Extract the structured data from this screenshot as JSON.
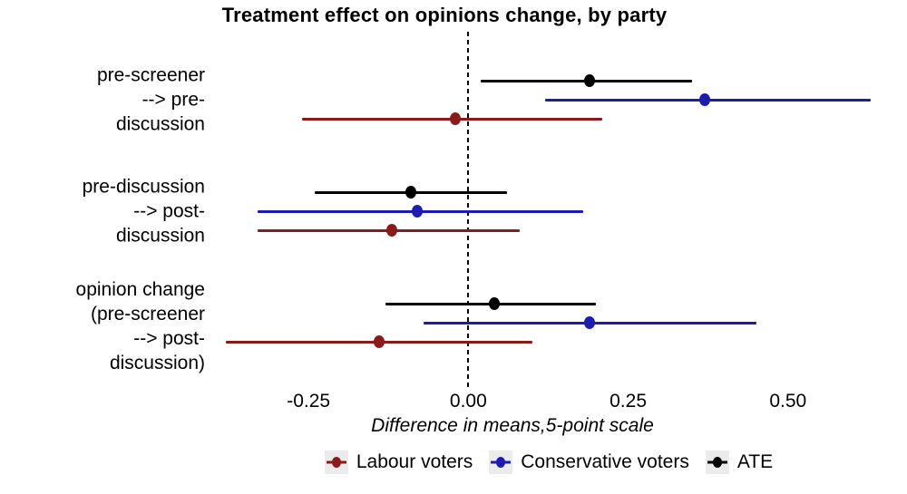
{
  "title": "Treatment effect on opinions change, by party",
  "chart_data": {
    "type": "scatter",
    "subtype": "horizontal dot-whisker (forest) plot with confidence intervals",
    "title": "Treatment effect on opinions change, by party",
    "xlabel": "Difference in means,5-point scale",
    "xlim": [
      -0.385,
      0.672
    ],
    "zero_line": 0,
    "xticks": [
      -0.25,
      0,
      0.25,
      0.5
    ],
    "xtick_labels": [
      "-0.25",
      "0.00",
      "0.25",
      "0.50"
    ],
    "grid": "off",
    "legend_position": "bottom",
    "legend_order": [
      "Labour voters",
      "Conservative voters",
      "ATE"
    ],
    "key_background": "#EBEBEB",
    "categories": [
      {
        "id": "pre-screener --> pre-discussion",
        "lines": [
          "pre-screener",
          "--> pre-",
          "discussion"
        ]
      },
      {
        "id": "pre-discussion --> post-discussion",
        "lines": [
          "pre-discussion",
          "--> post-",
          "discussion"
        ]
      },
      {
        "id": "opinion change (pre-screener --> post-discussion)",
        "lines": [
          "opinion change",
          "(pre-screener",
          "--> post-",
          "discussion)"
        ]
      }
    ],
    "series": [
      {
        "name": "ATE",
        "color": "#000000",
        "points": [
          {
            "category": "pre-screener --> pre-discussion",
            "est": 0.19,
            "lo": 0.02,
            "hi": 0.35
          },
          {
            "category": "pre-discussion --> post-discussion",
            "est": -0.09,
            "lo": -0.24,
            "hi": 0.06
          },
          {
            "category": "opinion change (pre-screener --> post-discussion)",
            "est": 0.04,
            "lo": -0.13,
            "hi": 0.2
          }
        ]
      },
      {
        "name": "Conservative voters",
        "color": "#1C1CB0",
        "points": [
          {
            "category": "pre-screener --> pre-discussion",
            "est": 0.37,
            "lo": 0.12,
            "hi": 0.63
          },
          {
            "category": "pre-discussion --> post-discussion",
            "est": -0.08,
            "lo": -0.33,
            "hi": 0.18
          },
          {
            "category": "opinion change (pre-screener --> post-discussion)",
            "est": 0.19,
            "lo": -0.07,
            "hi": 0.45
          }
        ]
      },
      {
        "name": "Labour voters",
        "color": "#8B1A1A",
        "points": [
          {
            "category": "pre-screener --> pre-discussion",
            "est": -0.02,
            "lo": -0.26,
            "hi": 0.21
          },
          {
            "category": "pre-discussion --> post-discussion",
            "est": -0.12,
            "lo": -0.33,
            "hi": 0.08
          },
          {
            "category": "opinion change (pre-screener --> post-discussion)",
            "est": -0.14,
            "lo": -0.38,
            "hi": 0.1
          }
        ]
      }
    ]
  }
}
